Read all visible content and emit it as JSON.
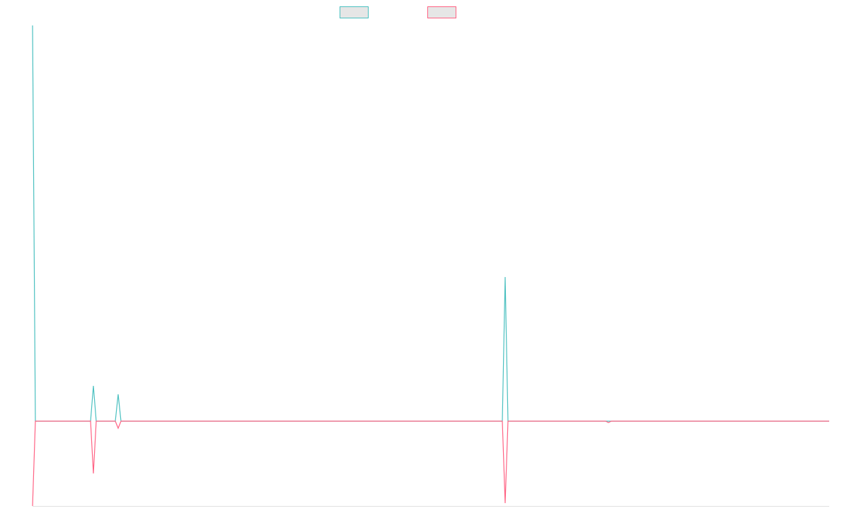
{
  "chart_data": {
    "type": "line",
    "x": [
      0,
      4,
      82,
      86,
      90,
      117,
      121,
      125,
      664,
      668,
      672,
      810,
      814,
      818,
      1126
    ],
    "series": [
      {
        "color": "#4bc0c0",
        "values": [
          560,
          0,
          0,
          50,
          0,
          0,
          38,
          0,
          0,
          204,
          0,
          0,
          0,
          0,
          0
        ]
      },
      {
        "color": "#ff6384",
        "values": [
          -120,
          0,
          0,
          -74,
          0,
          0,
          -10,
          0,
          0,
          -116,
          0,
          0,
          -2,
          0,
          0
        ]
      }
    ],
    "xlim": [
      0,
      1126
    ],
    "ylim": [
      -120,
      560
    ]
  }
}
